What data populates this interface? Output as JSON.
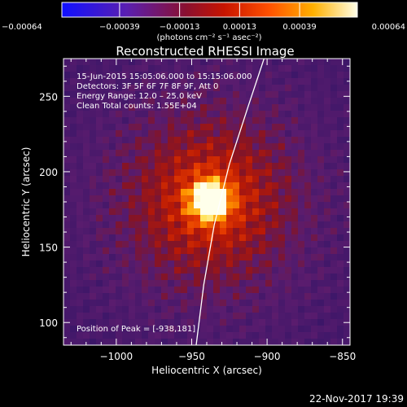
{
  "chart_data": {
    "type": "heatmap",
    "title": "Reconstructed RHESSI Image",
    "xlabel": "Heliocentric X (arcsec)",
    "ylabel": "Heliocentric Y (arcsec)",
    "xlim": [
      -1035,
      -845
    ],
    "ylim": [
      85,
      275
    ],
    "xticks": [
      -1000,
      -950,
      -900,
      -850
    ],
    "xtick_labels": [
      "−1000",
      "−950",
      "−900",
      "−850"
    ],
    "yticks": [
      100,
      150,
      200,
      250
    ],
    "ytick_labels": [
      "100",
      "150",
      "200",
      "250"
    ],
    "colorbar": {
      "min": -0.00064,
      "max": 0.00064,
      "ticks": [
        -0.00064,
        -0.00039,
        -0.00013,
        0.00013,
        0.00039,
        0.00064
      ],
      "tick_labels": [
        "−0.00064",
        "−0.00039",
        "−0.00013",
        "0.00013",
        "0.00039",
        "0.00064"
      ],
      "unit_label": "(photons cm⁻² s⁻¹ asec⁻²)",
      "colormap": "blue-purple-red-orange-yellow-white"
    },
    "info_lines": [
      "15-Jun-2015 15:05:06.000 to 15:15:06.000",
      "Detectors: 3F 5F 6F 7F 8F 9F, Att 0",
      "Energy Range: 12.0 – 25.0 keV",
      "Clean     Total counts: 1.55E+04"
    ],
    "peak": {
      "x": -938,
      "y": 181,
      "label": "Position of Peak = [-938,181]"
    },
    "limb_points": [
      [
        -947,
        85
      ],
      [
        -942,
        125
      ],
      [
        -935,
        165
      ],
      [
        -925,
        205
      ],
      [
        -912,
        245
      ],
      [
        -902,
        275
      ]
    ],
    "source_sigma_arcsec": 32
  },
  "footer": {
    "date": "22-Nov-2017 19:39"
  },
  "colors": {
    "background": "#000000",
    "text": "#ffffff",
    "limb": "#ffffff"
  }
}
